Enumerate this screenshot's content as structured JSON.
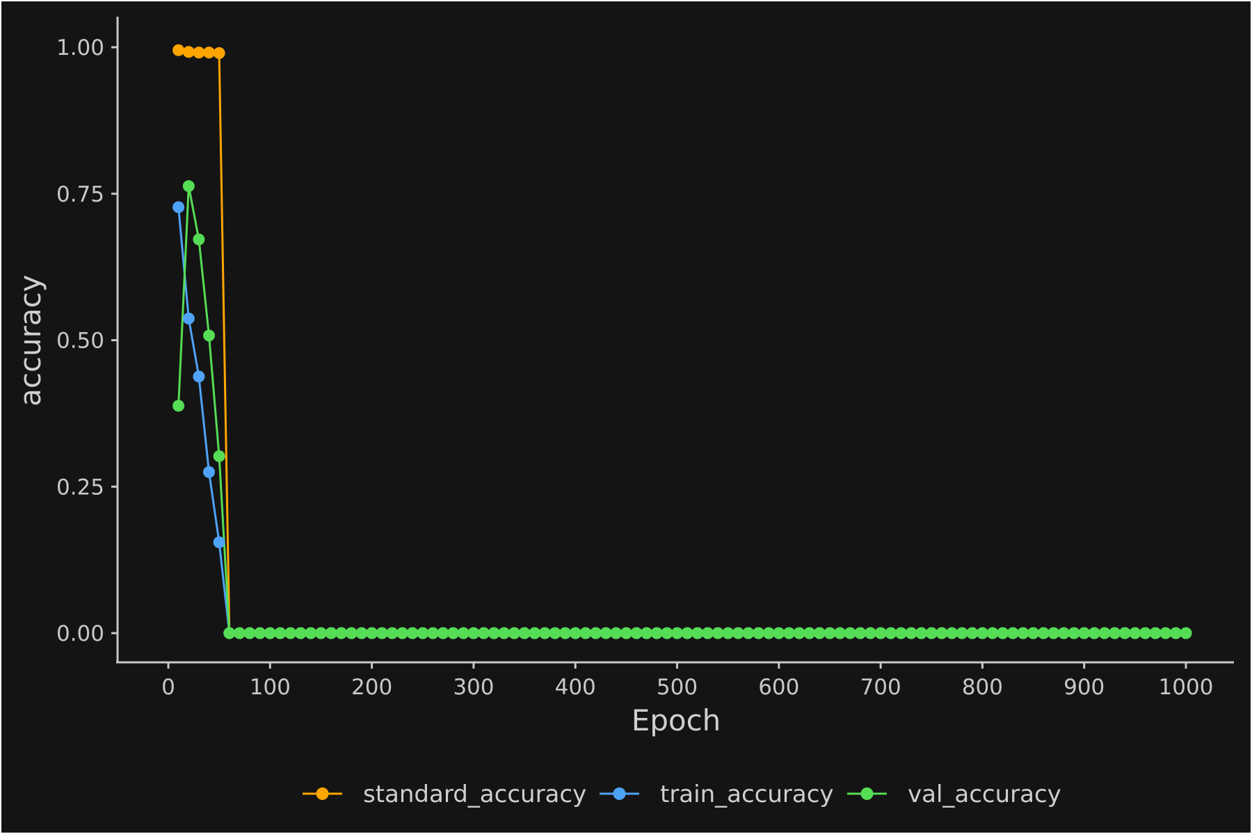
{
  "chart_data": {
    "type": "line",
    "xlabel": "Epoch",
    "ylabel": "accuracy",
    "xlim": [
      -50,
      1030
    ],
    "ylim": [
      -0.05,
      1.05
    ],
    "x_ticks": [
      0,
      100,
      200,
      300,
      400,
      500,
      600,
      700,
      800,
      900,
      1000
    ],
    "x_tick_labels": [
      "0",
      "100",
      "200",
      "300",
      "400",
      "500",
      "600",
      "700",
      "800",
      "900",
      "1000"
    ],
    "y_ticks": [
      0,
      0.25,
      0.5,
      0.75,
      1.0
    ],
    "y_tick_labels": [
      "0.00",
      "0.25",
      "0.50",
      "0.75",
      "1.00"
    ],
    "grid": false,
    "legend_position": "bottom",
    "background": "#141414",
    "x": {
      "start": 10,
      "end": 1000,
      "step": 10
    },
    "series": [
      {
        "name": "standard_accuracy",
        "color": "#ffa500",
        "points": [
          [
            10,
            0.995
          ],
          [
            20,
            0.992
          ],
          [
            30,
            0.991
          ],
          [
            40,
            0.991
          ],
          [
            50,
            0.99
          ],
          [
            60,
            0.0
          ]
        ],
        "rest_value": 0.0
      },
      {
        "name": "train_accuracy",
        "color": "#4fa3f7",
        "points": [
          [
            10,
            0.727
          ],
          [
            20,
            0.537
          ],
          [
            30,
            0.438
          ],
          [
            40,
            0.275
          ],
          [
            50,
            0.155
          ],
          [
            60,
            0.0
          ]
        ],
        "rest_value": 0.0
      },
      {
        "name": "val_accuracy",
        "color": "#55dd55",
        "points": [
          [
            10,
            0.388
          ],
          [
            20,
            0.763
          ],
          [
            30,
            0.672
          ],
          [
            40,
            0.508
          ],
          [
            50,
            0.302
          ],
          [
            60,
            0.0
          ]
        ],
        "rest_value": 0.0
      }
    ]
  }
}
